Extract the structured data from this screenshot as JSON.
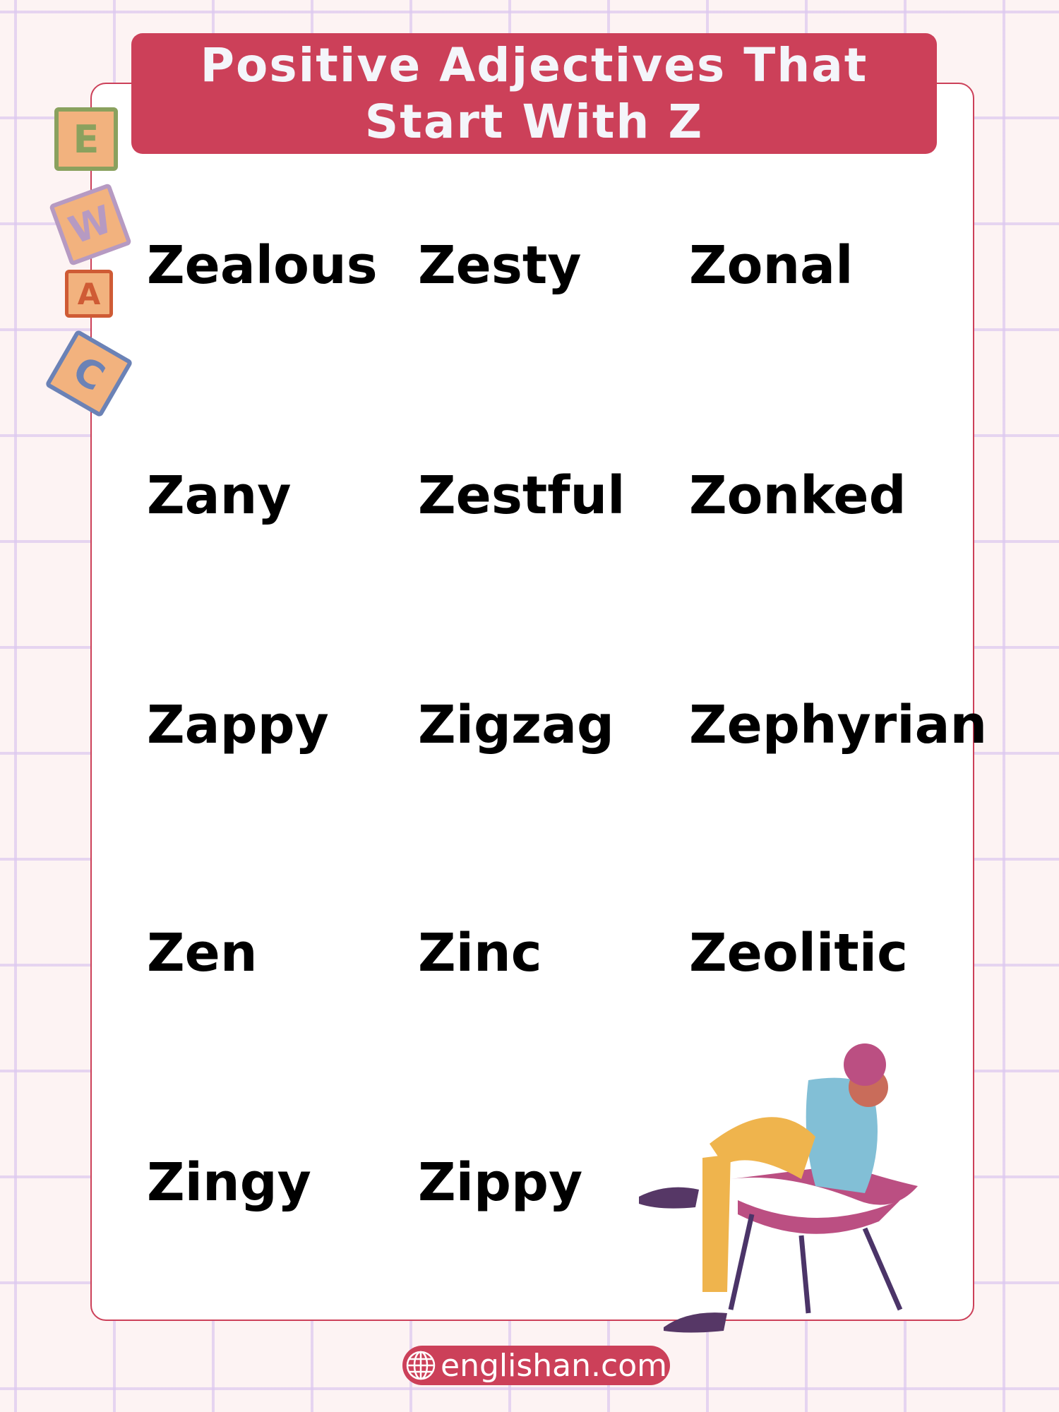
{
  "title": {
    "line1": "Positive Adjectives That",
    "line2": "Start With Z"
  },
  "words": [
    "Zealous",
    "Zesty",
    "Zonal",
    "Zany",
    "Zestful",
    "Zonked",
    "Zappy",
    "Zigzag",
    "Zephyrian",
    "Zen",
    "Zinc",
    "Zeolitic",
    "Zingy",
    "Zippy"
  ],
  "blocks": [
    "E",
    "W",
    "A",
    "C"
  ],
  "footer": {
    "site": "englishan.com",
    "icon": "globe-icon"
  },
  "colors": {
    "accent": "#cc4059",
    "background": "#fdf3f3",
    "grid": "#e6d6f2"
  }
}
